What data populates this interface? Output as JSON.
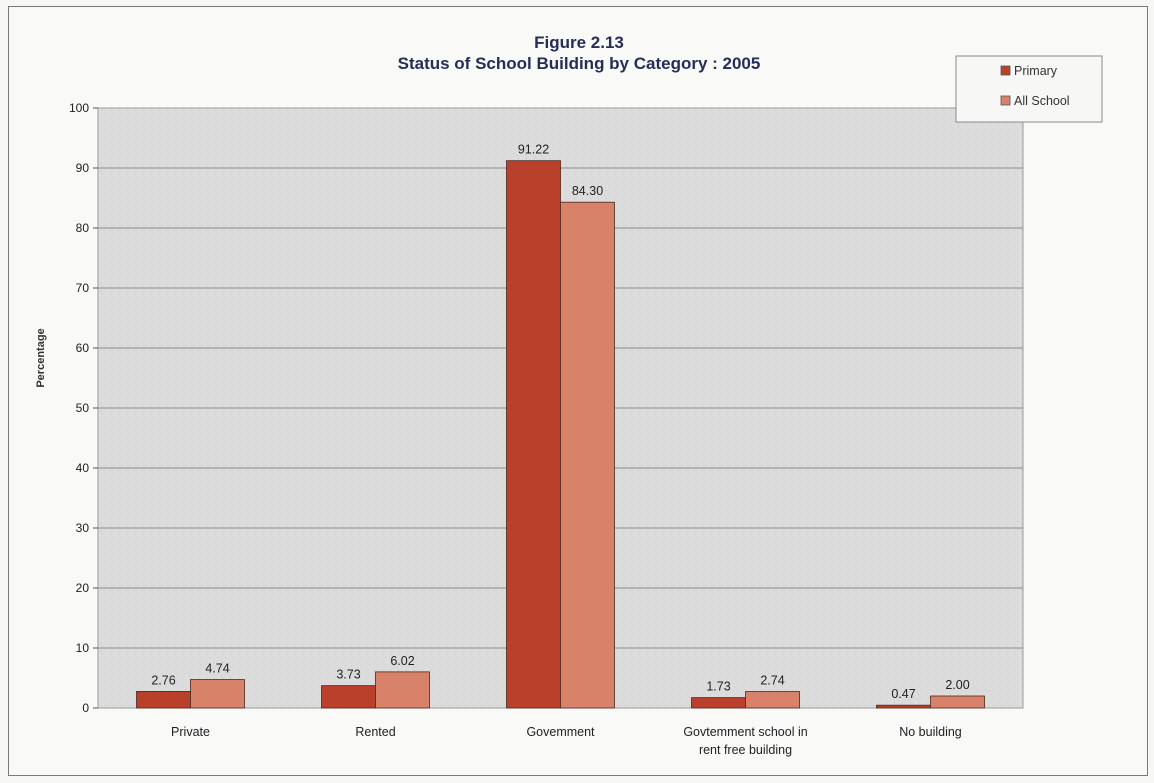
{
  "chart_data": {
    "type": "bar",
    "title": "Figure 2.13",
    "subtitle": "Status of School Building by Category : 2005",
    "ylabel": "Percentage",
    "xlabel": "",
    "ylim": [
      0,
      100
    ],
    "yticks": [
      "0",
      "10",
      "20",
      "30",
      "40",
      "50",
      "60",
      "70",
      "80",
      "90",
      "100"
    ],
    "grid": true,
    "legend_position": "top-right",
    "categories": [
      [
        "Private"
      ],
      [
        "Rented"
      ],
      [
        "Govemment"
      ],
      [
        "Govtemment school in",
        "rent free building"
      ],
      [
        "No building"
      ]
    ],
    "series": [
      {
        "name": "Primary",
        "color": "#b9402a",
        "values": [
          2.76,
          3.73,
          91.22,
          1.73,
          0.47
        ],
        "labels": [
          "2.76",
          "3.73",
          "91.22",
          "1.73",
          "0.47"
        ]
      },
      {
        "name": "All School",
        "color": "#d9826a",
        "values": [
          4.74,
          6.02,
          84.3,
          2.74,
          2.0
        ],
        "labels": [
          "4.74",
          "6.02",
          "84.30",
          "2.74",
          "2.00"
        ]
      }
    ]
  }
}
